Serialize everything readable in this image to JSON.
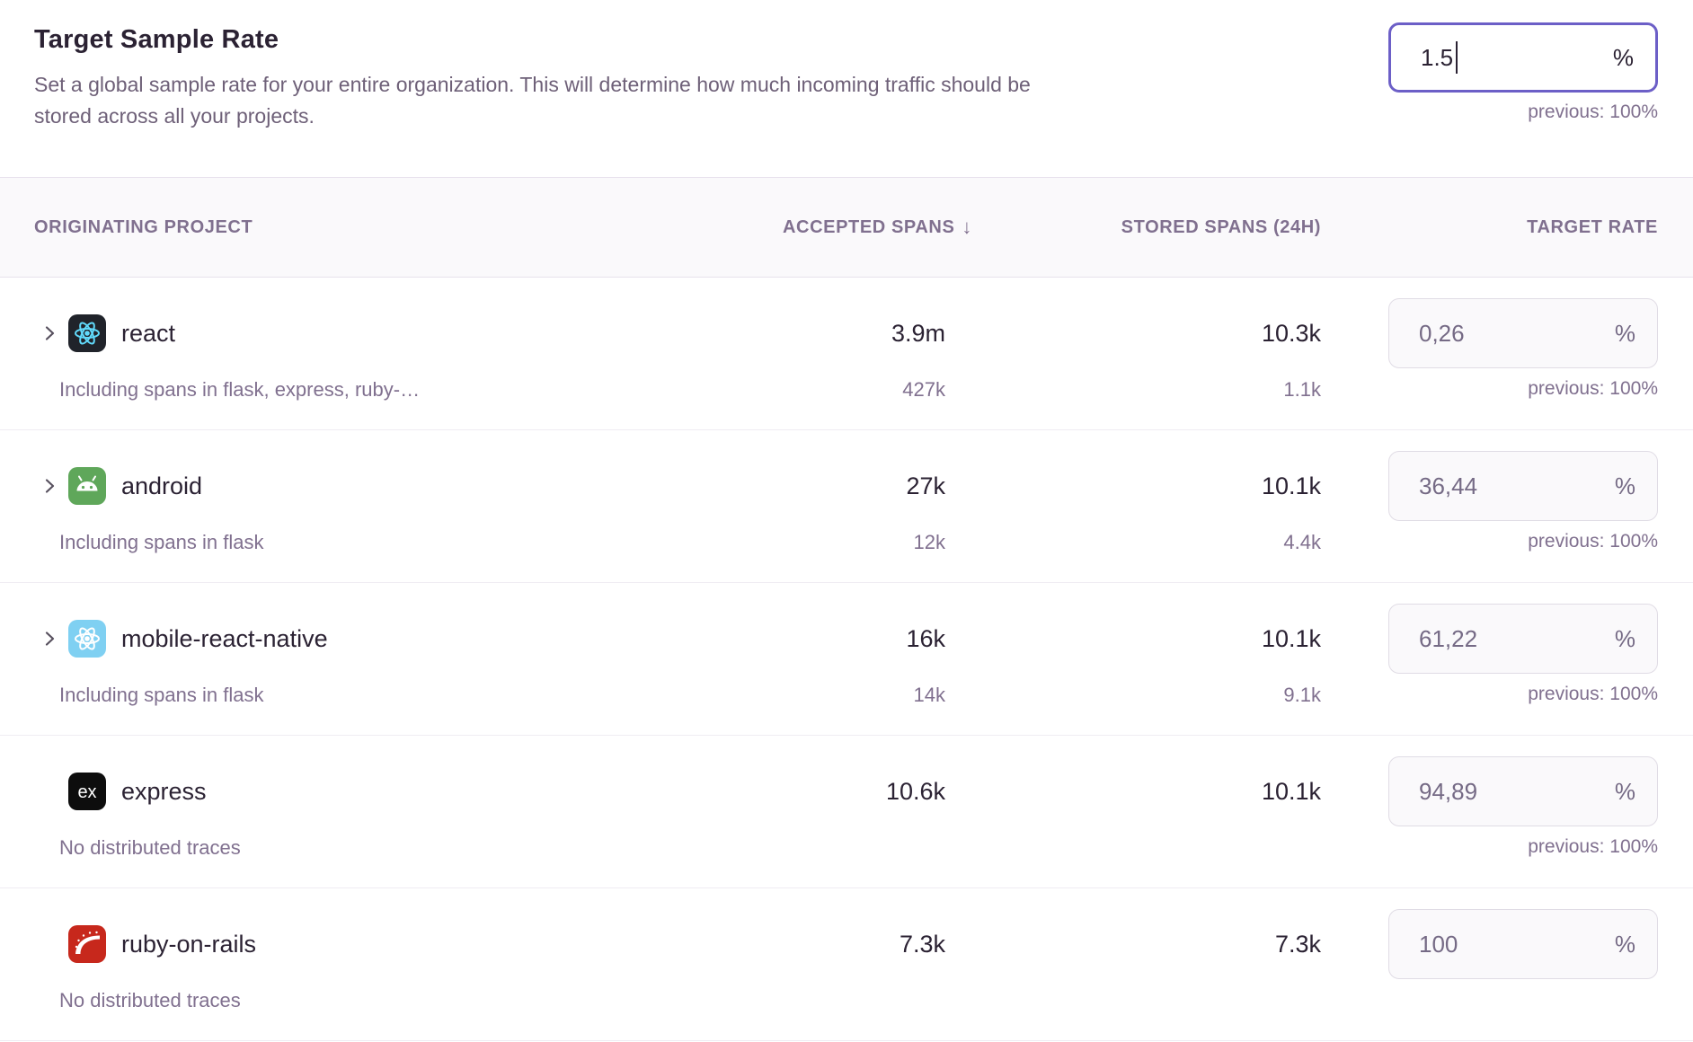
{
  "panel": {
    "title": "Target Sample Rate",
    "description": "Set a global sample rate for your entire organization. This will determine how much incoming traffic should be stored across all your projects.",
    "global_rate": {
      "value": "1.5",
      "unit": "%",
      "previous": "previous: 100%"
    }
  },
  "table": {
    "headers": {
      "project": "ORIGINATING PROJECT",
      "accepted": "ACCEPTED SPANS",
      "stored": "STORED SPANS (24H)",
      "rate": "TARGET RATE"
    },
    "sort_indicator": "↓",
    "rows": [
      {
        "platform": "react",
        "name": "react",
        "expandable": true,
        "subtitle": "Including spans in flask, express, ruby-…",
        "accepted": "3.9m",
        "accepted_sub": "427k",
        "stored": "10.3k",
        "stored_sub": "1.1k",
        "rate": "0,26",
        "unit": "%",
        "previous": "previous: 100%"
      },
      {
        "platform": "android",
        "name": "android",
        "expandable": true,
        "subtitle": "Including spans in flask",
        "accepted": "27k",
        "accepted_sub": "12k",
        "stored": "10.1k",
        "stored_sub": "4.4k",
        "rate": "36,44",
        "unit": "%",
        "previous": "previous: 100%"
      },
      {
        "platform": "react-native",
        "name": "mobile-react-native",
        "expandable": true,
        "subtitle": "Including spans in flask",
        "accepted": "16k",
        "accepted_sub": "14k",
        "stored": "10.1k",
        "stored_sub": "9.1k",
        "rate": "61,22",
        "unit": "%",
        "previous": "previous: 100%"
      },
      {
        "platform": "express",
        "name": "express",
        "expandable": false,
        "subtitle": "No distributed traces",
        "accepted": "10.6k",
        "accepted_sub": "",
        "stored": "10.1k",
        "stored_sub": "",
        "rate": "94,89",
        "unit": "%",
        "previous": "previous: 100%"
      },
      {
        "platform": "rails",
        "name": "ruby-on-rails",
        "expandable": false,
        "subtitle": "No distributed traces",
        "accepted": "7.3k",
        "accepted_sub": "",
        "stored": "7.3k",
        "stored_sub": "",
        "rate": "100",
        "unit": "%",
        "previous": ""
      }
    ]
  },
  "colors": {
    "accent": "#6c5fc7",
    "text_dark": "#2b2233",
    "text_muted": "#80708f",
    "react_icon_bg": "#20232a",
    "react_logo": "#61dafb",
    "android_icon_bg": "#5fa75a",
    "react_native_icon_bg": "#7fd0f2",
    "express_icon_bg": "#0d0d0d",
    "rails_icon_bg": "#c7281c"
  }
}
